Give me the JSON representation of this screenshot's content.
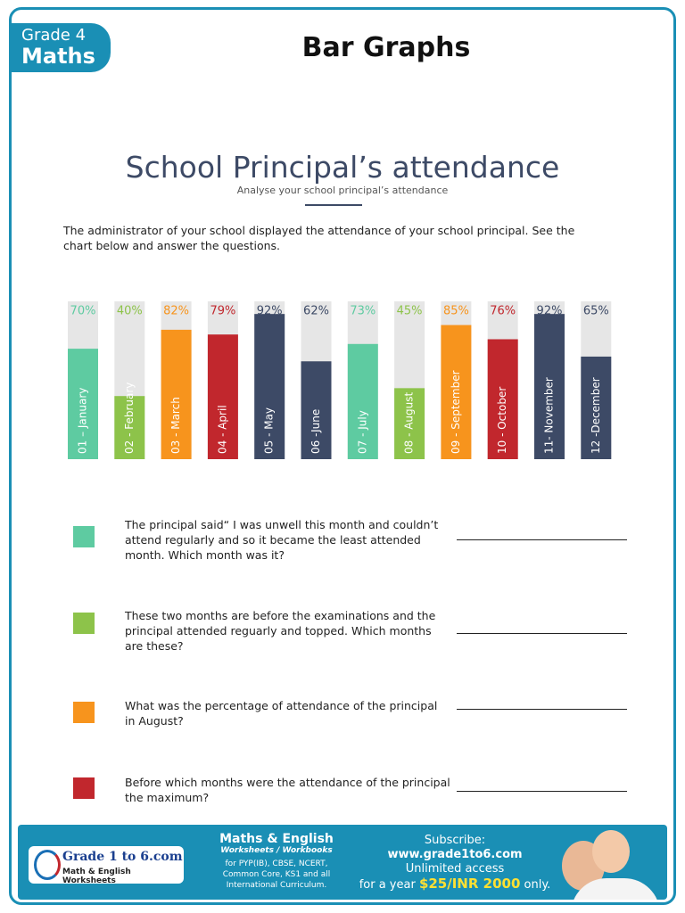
{
  "header": {
    "grade": "Grade 4",
    "subject": "Maths",
    "title": "Bar Graphs"
  },
  "worksheet": {
    "title": "School Principal’s attendance",
    "subtitle": "Analyse your school principal’s attendance",
    "intro": "The administrator of your school displayed the attendance of your school principal. See the chart below and answer the questions."
  },
  "chart_data": {
    "type": "bar",
    "categories": [
      "01 – January",
      "02 - February",
      "03 - March",
      "04 - April",
      "05 - May",
      "06 -June",
      "07 - July",
      "08 - August",
      "09 - September",
      "10 - October",
      "11- November",
      "12 -December"
    ],
    "values": [
      70,
      40,
      82,
      79,
      92,
      62,
      73,
      45,
      85,
      76,
      92,
      65
    ],
    "value_labels": [
      "70%",
      "40%",
      "82%",
      "79%",
      "92%",
      "62%",
      "73%",
      "45%",
      "85%",
      "76%",
      "92%",
      "65%"
    ],
    "colors": [
      "#5ecba1",
      "#8dc34a",
      "#f7941d",
      "#c1272d",
      "#3d4a66",
      "#3d4a66",
      "#5ecba1",
      "#8dc34a",
      "#f7941d",
      "#c1272d",
      "#3d4a66",
      "#3d4a66"
    ],
    "ylim": [
      0,
      100
    ]
  },
  "questions": [
    "The principal said“ I was unwell this month and couldn’t attend regularly and so it became the least attended month. Which month was it?",
    "These two months are before the examinations and the principal attended reguarly and topped. Which months are these?",
    "What was the percentage of attendance of the principal in August?",
    "Before which months were the attendance of the principal the maximum?"
  ],
  "footer": {
    "logo": "Grade 1 to 6.com",
    "logo_sub": "Math & English Worksheets",
    "promo_title": "Maths & English",
    "promo_sub": "Worksheets / Workbooks",
    "promo_text": "for PYP(IB), CBSE, NCERT, Common Core, KS1 and all International Curriculum.",
    "subscribe": "Subscribe:",
    "url": "www.grade1to6.com",
    "access": "Unlimited access",
    "price_pre": "for a year",
    "price": "$25/INR 2000",
    "price_post": "only."
  }
}
